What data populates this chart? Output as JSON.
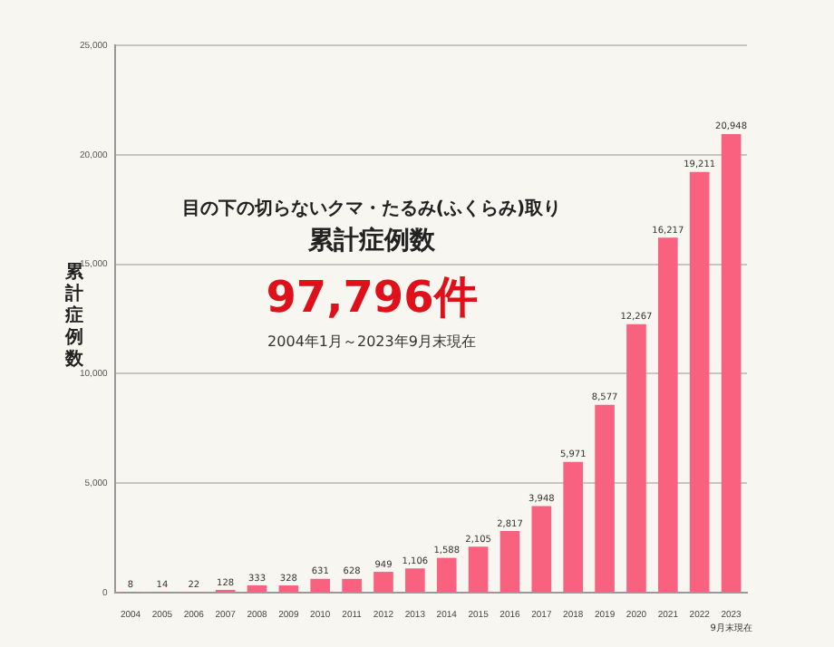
{
  "chart_data": {
    "type": "bar",
    "title": "目の下の切らないクマ・たるみ(ふくらみ)取り",
    "subtitle": "累計症例数",
    "ylabel": "累計症例数",
    "annotations": [
      "97,796件",
      "2004年1月～2023年9月末現在",
      "9月末現在"
    ],
    "categories": [
      "2004",
      "2005",
      "2006",
      "2007",
      "2008",
      "2009",
      "2010",
      "2011",
      "2012",
      "2013",
      "2014",
      "2015",
      "2016",
      "2017",
      "2018",
      "2019",
      "2020",
      "2021",
      "2022",
      "2023"
    ],
    "values": [
      8,
      14,
      22,
      128,
      333,
      328,
      631,
      628,
      949,
      1106,
      1588,
      2105,
      2817,
      3948,
      5971,
      8577,
      12267,
      16217,
      19211,
      20948
    ],
    "value_labels": [
      "8",
      "14",
      "22",
      "128",
      "333",
      "328",
      "631",
      "628",
      "949",
      "1,106",
      "1,588",
      "2,105",
      "2,817",
      "3,948",
      "5,971",
      "8,577",
      "12,267",
      "16,217",
      "19,211",
      "20,948"
    ],
    "color": "#f9627e",
    "ylim": [
      0,
      25000
    ],
    "yticks": [
      0,
      {
        "value": 5000,
        "label": "5,000"
      },
      {
        "value": 10000,
        "label": "10,000"
      },
      {
        "value": 15000,
        "label": "15,000"
      },
      {
        "value": 20000,
        "label": "20,000"
      },
      {
        "value": 25000,
        "label": "25,000"
      }
    ],
    "grid": "y",
    "legend": false
  }
}
